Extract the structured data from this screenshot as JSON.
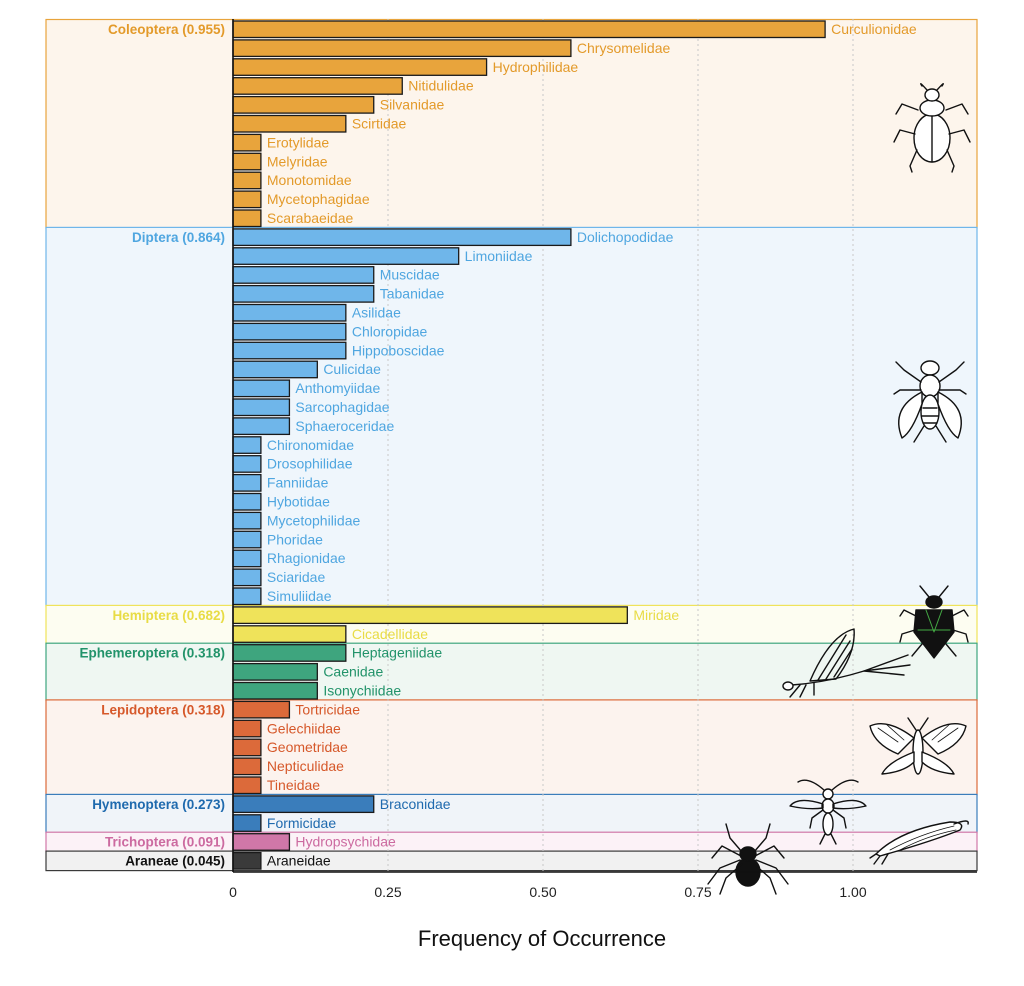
{
  "chart_data": {
    "type": "bar",
    "orientation": "horizontal",
    "xlabel": "Frequency of Occurrence",
    "xlim": [
      0,
      1.2
    ],
    "x_ticks": [
      0,
      0.25,
      0.5,
      0.75,
      1.0
    ],
    "x_tick_labels": [
      "0",
      "0.25",
      "0.50",
      "0.75",
      "1.00"
    ],
    "grid": "dotted vertical",
    "groups": [
      {
        "order": "Coleoptera",
        "frequency_label": "(0.955)",
        "color": "#E8A43C",
        "panel_fill": "#FDF5EC",
        "label_color": "#E39A2A",
        "families": [
          {
            "name": "Curculionidae",
            "value": 0.955
          },
          {
            "name": "Chrysomelidae",
            "value": 0.545
          },
          {
            "name": "Hydrophilidae",
            "value": 0.409
          },
          {
            "name": "Nitidulidae",
            "value": 0.273
          },
          {
            "name": "Silvanidae",
            "value": 0.227
          },
          {
            "name": "Scirtidae",
            "value": 0.182
          },
          {
            "name": "Erotylidae",
            "value": 0.045
          },
          {
            "name": "Melyridae",
            "value": 0.045
          },
          {
            "name": "Monotomidae",
            "value": 0.045
          },
          {
            "name": "Mycetophagidae",
            "value": 0.045
          },
          {
            "name": "Scarabaeidae",
            "value": 0.045
          }
        ]
      },
      {
        "order": "Diptera",
        "frequency_label": "(0.864)",
        "color": "#6FB6EA",
        "panel_fill": "#EFF6FC",
        "label_color": "#4FA6E0",
        "families": [
          {
            "name": "Dolichopodidae",
            "value": 0.545
          },
          {
            "name": "Limoniidae",
            "value": 0.364
          },
          {
            "name": "Muscidae",
            "value": 0.227
          },
          {
            "name": "Tabanidae",
            "value": 0.227
          },
          {
            "name": "Asilidae",
            "value": 0.182
          },
          {
            "name": "Chloropidae",
            "value": 0.182
          },
          {
            "name": "Hippoboscidae",
            "value": 0.182
          },
          {
            "name": "Culicidae",
            "value": 0.136
          },
          {
            "name": "Anthomyiidae",
            "value": 0.091
          },
          {
            "name": "Sarcophagidae",
            "value": 0.091
          },
          {
            "name": "Sphaeroceridae",
            "value": 0.091
          },
          {
            "name": "Chironomidae",
            "value": 0.045
          },
          {
            "name": "Drosophilidae",
            "value": 0.045
          },
          {
            "name": "Fanniidae",
            "value": 0.045
          },
          {
            "name": "Hybotidae",
            "value": 0.045
          },
          {
            "name": "Mycetophilidae",
            "value": 0.045
          },
          {
            "name": "Phoridae",
            "value": 0.045
          },
          {
            "name": "Rhagionidae",
            "value": 0.045
          },
          {
            "name": "Sciaridae",
            "value": 0.045
          },
          {
            "name": "Simuliidae",
            "value": 0.045
          }
        ]
      },
      {
        "order": "Hemiptera",
        "frequency_label": "(0.682)",
        "color": "#EFE35A",
        "panel_fill": "#FDFDF1",
        "label_color": "#E8DC45",
        "families": [
          {
            "name": "Miridae",
            "value": 0.636
          },
          {
            "name": "Cicadellidae",
            "value": 0.182
          }
        ]
      },
      {
        "order": "Ephemeroptera",
        "frequency_label": "(0.318)",
        "color": "#3EA57E",
        "panel_fill": "#EFF7F2",
        "label_color": "#22936A",
        "families": [
          {
            "name": "Heptageniidae",
            "value": 0.182
          },
          {
            "name": "Caenidae",
            "value": 0.136
          },
          {
            "name": "Isonychiidae",
            "value": 0.136
          }
        ]
      },
      {
        "order": "Lepidoptera",
        "frequency_label": "(0.318)",
        "color": "#DC6A3A",
        "panel_fill": "#FCF3EE",
        "label_color": "#D6582A",
        "families": [
          {
            "name": "Tortricidae",
            "value": 0.091
          },
          {
            "name": "Gelechiidae",
            "value": 0.045
          },
          {
            "name": "Geometridae",
            "value": 0.045
          },
          {
            "name": "Nepticulidae",
            "value": 0.045
          },
          {
            "name": "Tineidae",
            "value": 0.045
          }
        ]
      },
      {
        "order": "Hymenoptera",
        "frequency_label": "(0.273)",
        "color": "#3A7DBB",
        "panel_fill": "#F0F4F9",
        "label_color": "#1F6AAE",
        "families": [
          {
            "name": "Braconidae",
            "value": 0.227
          },
          {
            "name": "Formicidae",
            "value": 0.045
          }
        ]
      },
      {
        "order": "Trichoptera",
        "frequency_label": "(0.091)",
        "color": "#D077A8",
        "panel_fill": "#FCF2F7",
        "label_color": "#CC6AA0",
        "families": [
          {
            "name": "Hydropsychidae",
            "value": 0.091
          }
        ]
      },
      {
        "order": "Araneae",
        "frequency_label": "(0.045)",
        "color": "#3A3A3A",
        "panel_fill": "#F1F1F1",
        "label_color": "#111111",
        "families": [
          {
            "name": "Araneidae",
            "value": 0.045
          }
        ]
      }
    ],
    "silhouettes": [
      "beetle-icon",
      "fly-icon",
      "shield-bug-icon",
      "mayfly-icon",
      "moth-icon",
      "wasp-icon",
      "caddisfly-icon",
      "spider-icon"
    ]
  }
}
